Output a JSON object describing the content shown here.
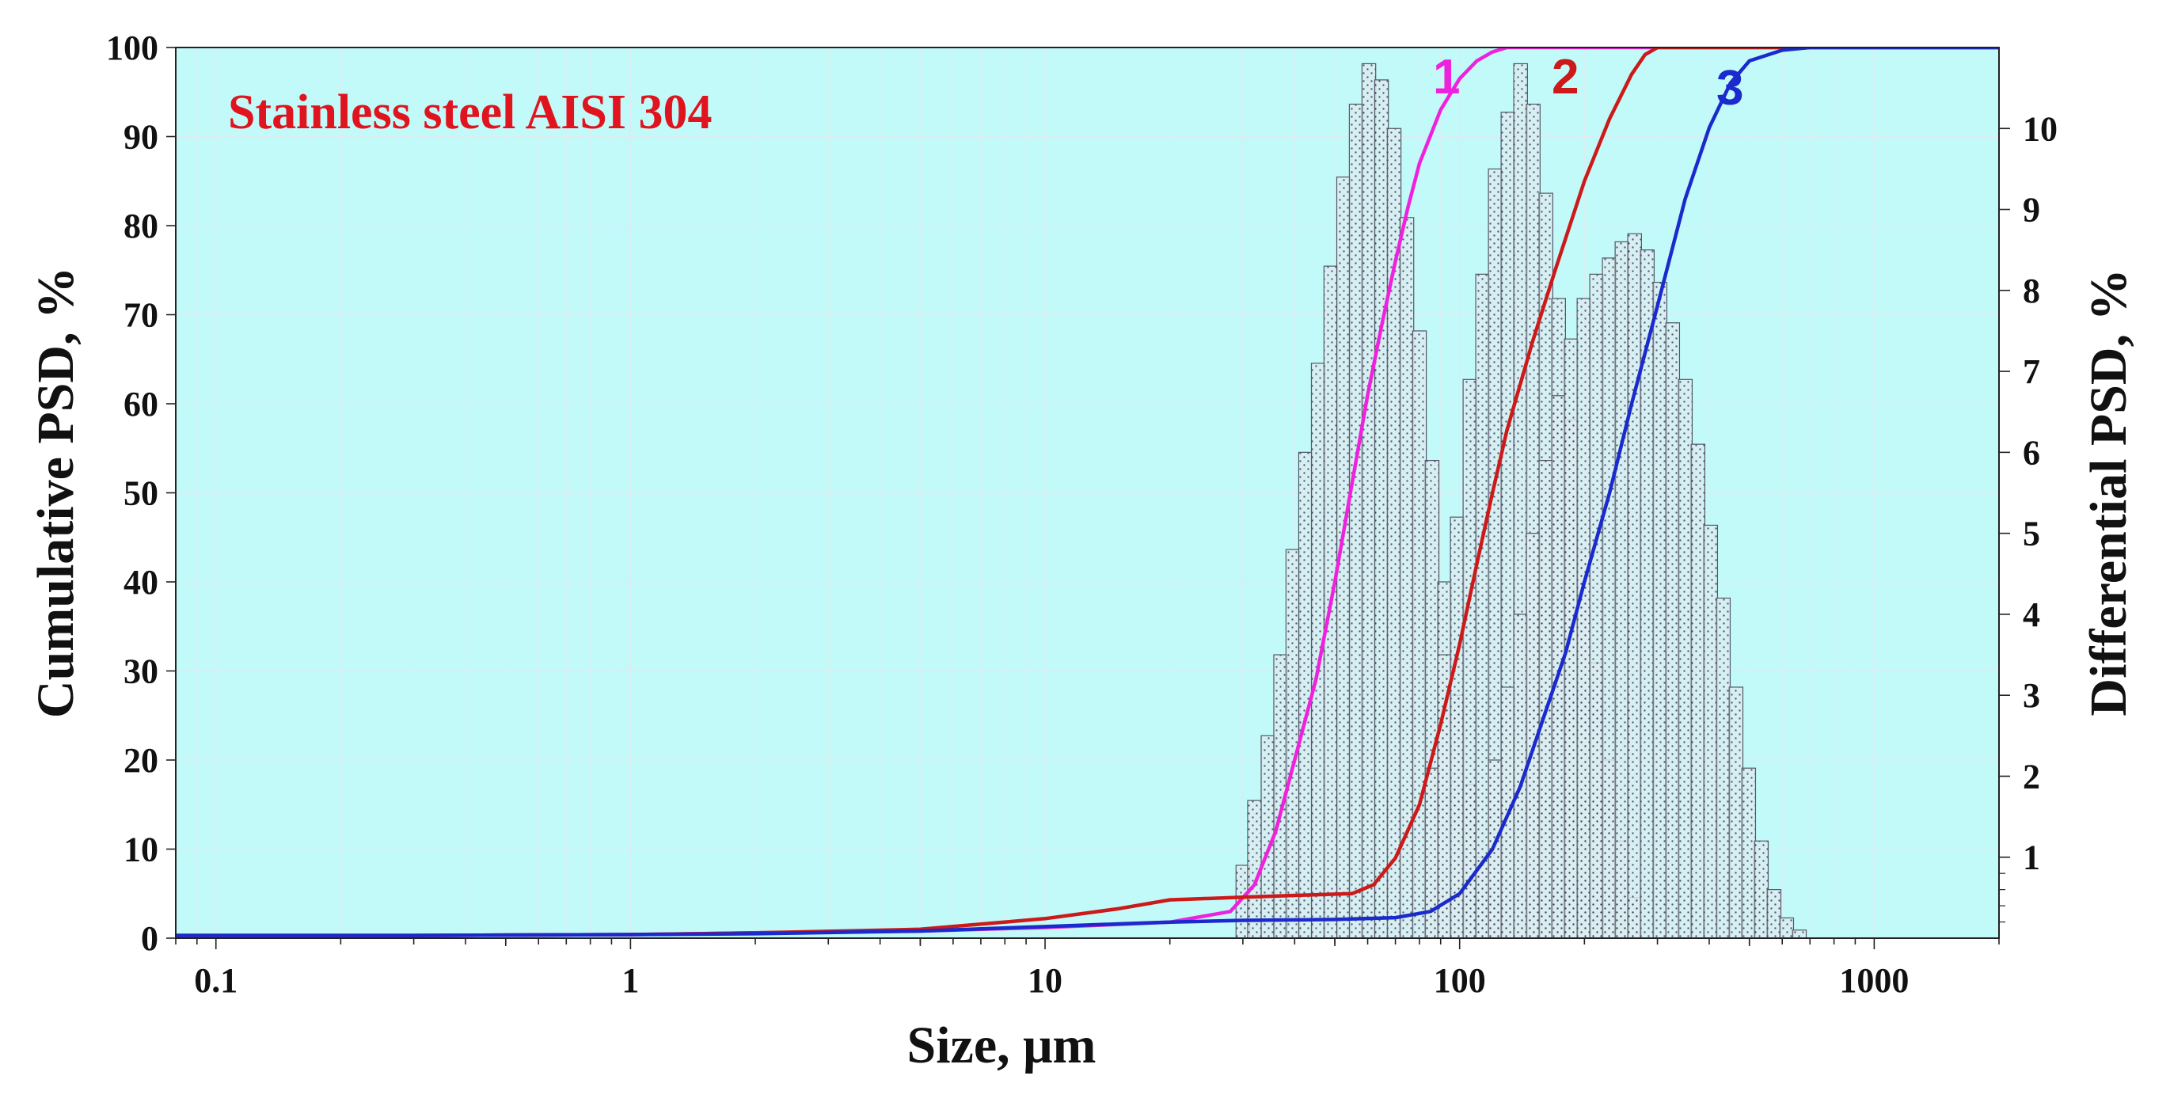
{
  "chart_data": {
    "type": "line",
    "title": "Stainless steel AISI 304",
    "xlabel": "Size, μm",
    "ylabel_left": "Cumulative PSD, %",
    "ylabel_right": "Differential PSD, %",
    "x_scale": "log",
    "xlim": [
      0.08,
      2000
    ],
    "ylim_left": [
      0,
      100
    ],
    "ylim_right": [
      0,
      11
    ],
    "x_ticks": [
      "0.1",
      "1",
      "10",
      "100",
      "1000"
    ],
    "y_ticks_left": [
      "0",
      "10",
      "20",
      "30",
      "40",
      "50",
      "60",
      "70",
      "80",
      "90",
      "100"
    ],
    "y_ticks_right": [
      "1",
      "2",
      "3",
      "4",
      "5",
      "6",
      "7",
      "8",
      "9",
      "10"
    ],
    "grid": true,
    "colors": {
      "plot_background": "#c2fafa",
      "grid": "#dcecf0",
      "title": "#e0141e",
      "bar_fill": "#dcecf0",
      "bar_edge": "#555566"
    },
    "cumulative_series": [
      {
        "name": "1",
        "color": "#ee22dd",
        "x": [
          0.08,
          0.3,
          1,
          2,
          5,
          10,
          20,
          28,
          32,
          36,
          40,
          45,
          50,
          55,
          60,
          65,
          70,
          75,
          80,
          90,
          100,
          110,
          120,
          130,
          2000
        ],
        "y": [
          0.3,
          0.3,
          0.4,
          0.6,
          0.8,
          1.2,
          1.8,
          3,
          6,
          12,
          20,
          29,
          40,
          51,
          61,
          69,
          76,
          82,
          87,
          93,
          96.5,
          98.5,
          99.5,
          100,
          100
        ]
      },
      {
        "name": "2",
        "color": "#cc1a1a",
        "x": [
          0.08,
          0.3,
          1,
          2,
          5,
          10,
          15,
          20,
          30,
          40,
          55,
          62,
          70,
          80,
          90,
          100,
          110,
          120,
          130,
          150,
          170,
          200,
          230,
          260,
          280,
          300,
          2000
        ],
        "y": [
          0.3,
          0.3,
          0.4,
          0.6,
          1,
          2.2,
          3.3,
          4.3,
          4.6,
          4.8,
          5,
          6,
          9,
          15,
          24,
          33,
          42,
          50,
          57,
          67,
          75,
          85,
          92,
          97,
          99.2,
          100,
          100
        ]
      },
      {
        "name": "3",
        "color": "#1a2acc",
        "x": [
          0.08,
          0.3,
          1,
          2,
          5,
          10,
          15,
          20,
          30,
          50,
          70,
          85,
          100,
          120,
          140,
          160,
          180,
          200,
          230,
          260,
          300,
          350,
          400,
          450,
          500,
          600,
          700,
          2000
        ],
        "y": [
          0.3,
          0.3,
          0.4,
          0.5,
          0.8,
          1.3,
          1.6,
          1.8,
          2,
          2.1,
          2.3,
          3,
          5,
          10,
          17,
          25,
          32,
          40,
          50,
          60,
          71,
          83,
          91,
          96,
          98.5,
          99.7,
          100,
          100
        ]
      }
    ],
    "differential_series": [
      {
        "name": "1",
        "bar_width_log10": 0.033,
        "bins": [
          [
            30,
            0.9
          ],
          [
            32,
            1.7
          ],
          [
            34.5,
            2.5
          ],
          [
            37,
            3.5
          ],
          [
            39.6,
            4.8
          ],
          [
            42.5,
            6.0
          ],
          [
            45.6,
            7.1
          ],
          [
            48.9,
            8.3
          ],
          [
            52.5,
            9.4
          ],
          [
            56.3,
            10.3
          ],
          [
            60.4,
            10.8
          ],
          [
            64.8,
            10.6
          ],
          [
            69.5,
            10.0
          ],
          [
            74.6,
            8.9
          ],
          [
            80,
            7.5
          ],
          [
            85.8,
            5.9
          ],
          [
            92,
            4.4
          ],
          [
            98.7,
            3.0
          ],
          [
            105.9,
            1.9
          ],
          [
            113.6,
            1.0
          ],
          [
            121.9,
            0.4
          ]
        ]
      },
      {
        "name": "2",
        "bar_width_log10": 0.033,
        "bins": [
          [
            85.8,
            2.1
          ],
          [
            92,
            3.5
          ],
          [
            98.7,
            5.2
          ],
          [
            105.9,
            6.9
          ],
          [
            113.6,
            8.2
          ],
          [
            121.9,
            9.5
          ],
          [
            130.8,
            10.2
          ],
          [
            140.3,
            10.8
          ],
          [
            150.5,
            10.3
          ],
          [
            161.5,
            9.2
          ],
          [
            173.3,
            7.9
          ],
          [
            185.9,
            6.4
          ],
          [
            199.5,
            4.8
          ],
          [
            214,
            3.4
          ],
          [
            229.6,
            2.2
          ],
          [
            246.4,
            1.2
          ],
          [
            264.3,
            0.5
          ]
        ]
      },
      {
        "name": "3",
        "bar_width_log10": 0.033,
        "bins": [
          [
            121.9,
            2.2
          ],
          [
            130.8,
            3.1
          ],
          [
            140.3,
            4.0
          ],
          [
            150.5,
            5.0
          ],
          [
            161.5,
            5.9
          ],
          [
            173.3,
            6.7
          ],
          [
            185.9,
            7.4
          ],
          [
            199.5,
            7.9
          ],
          [
            214,
            8.2
          ],
          [
            229.6,
            8.4
          ],
          [
            246.4,
            8.6
          ],
          [
            264.3,
            8.7
          ],
          [
            283.6,
            8.5
          ],
          [
            304.3,
            8.1
          ],
          [
            326.5,
            7.6
          ],
          [
            350.3,
            6.9
          ],
          [
            375.8,
            6.1
          ],
          [
            403.2,
            5.1
          ],
          [
            432.6,
            4.2
          ],
          [
            464.2,
            3.1
          ],
          [
            498,
            2.1
          ],
          [
            534.3,
            1.2
          ],
          [
            573.3,
            0.6
          ],
          [
            615.1,
            0.25
          ],
          [
            660,
            0.1
          ]
        ]
      }
    ]
  }
}
